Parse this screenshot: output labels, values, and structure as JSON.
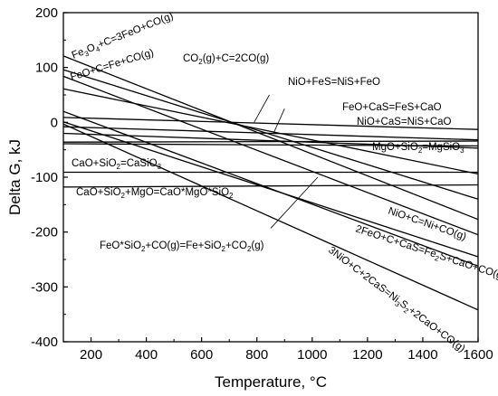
{
  "chart_data": {
    "type": "line",
    "xlabel": "Temperature, °C",
    "ylabel": "Delta G, kJ",
    "xlim": [
      100,
      1600
    ],
    "ylim": [
      -400,
      200
    ],
    "xticks": [
      200,
      400,
      600,
      800,
      1000,
      1200,
      1400,
      1600
    ],
    "yticks": [
      -400,
      -300,
      -200,
      -100,
      0,
      100,
      200
    ],
    "series": [
      {
        "x": [
          100,
          1600
        ],
        "y": [
          121,
          -177
        ]
      },
      {
        "x": [
          100,
          1600
        ],
        "y": [
          96,
          -140
        ]
      },
      {
        "x": [
          100,
          1600
        ],
        "y": [
          84,
          -205
        ]
      },
      {
        "x": [
          100,
          1600
        ],
        "y": [
          61,
          -94
        ]
      },
      {
        "x": [
          100,
          1600
        ],
        "y": [
          9,
          -13
        ]
      },
      {
        "x": [
          100,
          1600
        ],
        "y": [
          -8,
          -32
        ]
      },
      {
        "x": [
          100,
          1600
        ],
        "y": [
          -20,
          -47
        ]
      },
      {
        "x": [
          100,
          1600
        ],
        "y": [
          -36,
          -34
        ]
      },
      {
        "x": [
          100,
          1600
        ],
        "y": [
          -39,
          -43
        ]
      },
      {
        "x": [
          100,
          1600
        ],
        "y": [
          -91,
          -91
        ]
      },
      {
        "x": [
          100,
          1600
        ],
        "y": [
          -118,
          -114
        ]
      },
      {
        "x": [
          100,
          1600
        ],
        "y": [
          1,
          -245
        ]
      },
      {
        "x": [
          100,
          1600
        ],
        "y": [
          -3,
          -342
        ]
      },
      {
        "x": [
          100,
          1600
        ],
        "y": [
          20,
          -262
        ]
      }
    ],
    "annotations": [
      {
        "parts": [
          [
            "Fe"
          ],
          [
            "3",
            "sub"
          ],
          [
            "O"
          ],
          [
            "4",
            "sub"
          ],
          [
            "+C=3FeO+CO(g)"
          ]
        ]
      },
      {
        "parts": [
          [
            "FeO+C=Fe+CO(g)"
          ]
        ]
      },
      {
        "parts": [
          [
            "CO"
          ],
          [
            "2",
            "sub"
          ],
          [
            "(g)+C=2CO(g)"
          ]
        ]
      },
      {
        "parts": [
          [
            "NiO+FeS=NiS+FeO"
          ]
        ]
      },
      {
        "parts": [
          [
            "FeO+CaS=FeS+CaO"
          ]
        ]
      },
      {
        "parts": [
          [
            "NiO+CaS=NiS+CaO"
          ]
        ]
      },
      {
        "parts": [
          [
            "MgO+SiO"
          ],
          [
            "2",
            "sub"
          ],
          [
            "=MgSiO"
          ],
          [
            "3",
            "sub"
          ]
        ]
      },
      {
        "parts": [
          [
            "CaO+SiO"
          ],
          [
            "2",
            "sub"
          ],
          [
            "=CaSiO"
          ],
          [
            "3",
            "sub"
          ]
        ]
      },
      {
        "parts": [
          [
            "CaO+SiO"
          ],
          [
            "2",
            "sub"
          ],
          [
            "+MgO=CaO*MgO*SiO"
          ],
          [
            "2",
            "sub"
          ]
        ]
      },
      {
        "parts": [
          [
            "NiO+C=Ni+CO(g)"
          ]
        ]
      },
      {
        "parts": [
          [
            "2FeO+C+CaS=Fe"
          ],
          [
            "2",
            "sub"
          ],
          [
            "S+CaO+CO(g)"
          ]
        ]
      },
      {
        "parts": [
          [
            "FeO*SiO"
          ],
          [
            "2",
            "sub"
          ],
          [
            "+CO(g)=Fe+SiO"
          ],
          [
            "2",
            "sub"
          ],
          [
            "+CO"
          ],
          [
            "2",
            "sub"
          ],
          [
            "(g)"
          ]
        ]
      },
      {
        "parts": [
          [
            "3NiO+C+2CaS=Ni"
          ],
          [
            "3",
            "sub"
          ],
          [
            "S"
          ],
          [
            "2",
            "sub"
          ],
          [
            "+2CaO+CO(g)"
          ]
        ]
      }
    ],
    "leaders": [
      {
        "from": [
          845,
          50
        ],
        "to": [
          790,
          0
        ]
      },
      {
        "from": [
          900,
          25
        ],
        "to": [
          860,
          -20
        ]
      },
      {
        "from": [
          850,
          -193
        ],
        "to": [
          1020,
          -100
        ]
      }
    ],
    "grid": false,
    "line_color": "#000000"
  }
}
